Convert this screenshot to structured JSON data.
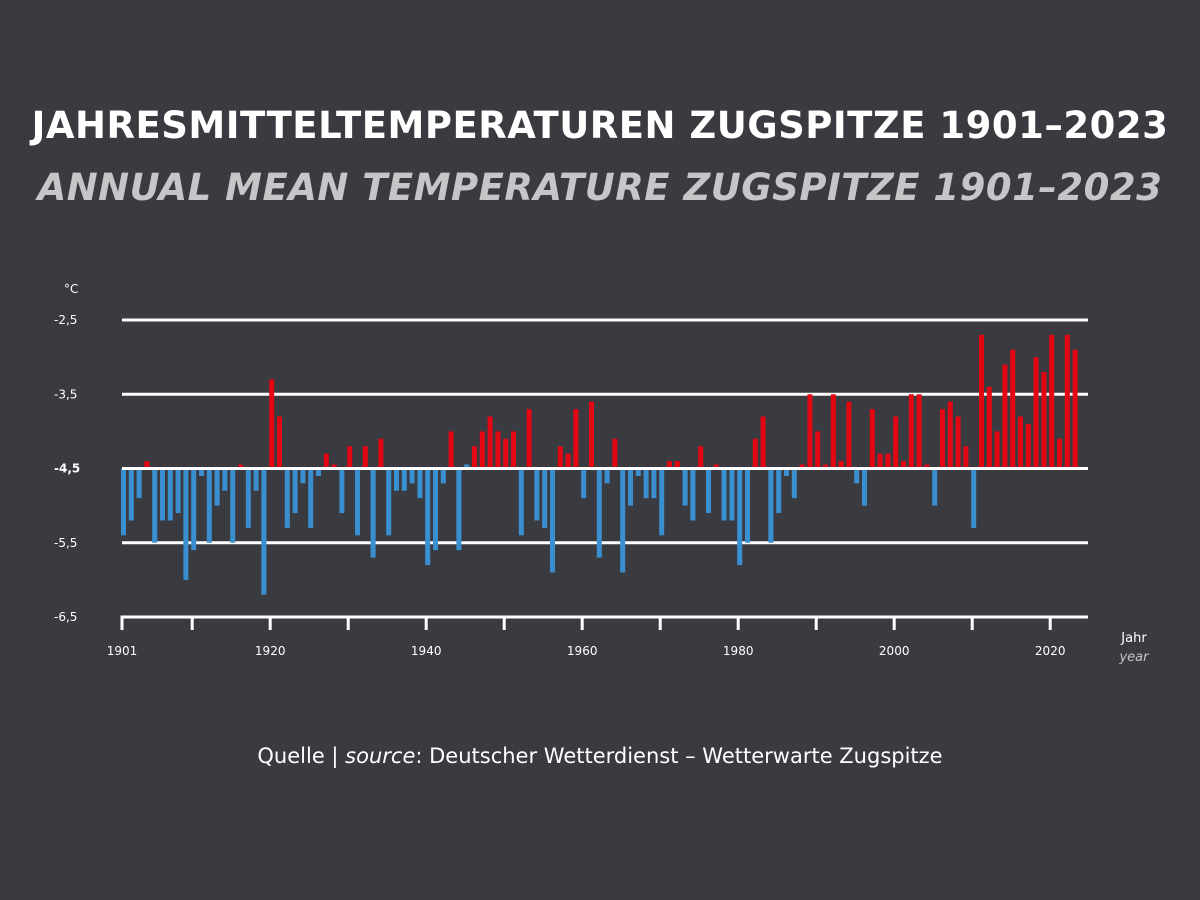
{
  "title": "JAHRESMITTELTEMPERATUREN ZUGSPITZE 1901–2023",
  "subtitle": "ANNUAL MEAN TEMPERATURE ZUGSPITZE 1901–2023",
  "source": {
    "label_de": "Quelle | ",
    "label_en": "source",
    "text": ": Deutscher Wetterdienst – Wetterwarte Zugspitze"
  },
  "colors": {
    "background": "#3a3b40",
    "above_mean": "#e30613",
    "below_mean": "#3a8fd0",
    "grid": "#ffffff"
  },
  "chart_data": {
    "type": "bar",
    "ylabel": "°C",
    "xlabel": "Jahr",
    "xlabel_en": "year",
    "ylim": [
      -6.5,
      -2.5
    ],
    "baseline": -4.5,
    "yticks": [
      "-2,5",
      "-3,5",
      "-4,5",
      "-5,5",
      "-6,5"
    ],
    "ytick_values": [
      -2.5,
      -3.5,
      -4.5,
      -5.5,
      -6.5
    ],
    "xticks": [
      "1901",
      "1920",
      "1940",
      "1960",
      "1980",
      "2000",
      "2020"
    ],
    "grid": true,
    "x_start": 1901,
    "x_end": 2023,
    "values": [
      -5.4,
      -5.2,
      -4.9,
      -4.4,
      -5.5,
      -5.2,
      -5.2,
      -5.1,
      -6.0,
      -5.6,
      -4.6,
      -5.5,
      -5.0,
      -4.8,
      -5.5,
      -4.48,
      -5.3,
      -4.8,
      -6.2,
      -3.3,
      -3.8,
      -5.3,
      -5.1,
      -4.7,
      -5.3,
      -4.6,
      -4.3,
      -4.48,
      -5.1,
      -4.2,
      -5.4,
      -4.2,
      -5.7,
      -4.1,
      -5.4,
      -4.8,
      -4.8,
      -4.7,
      -4.9,
      -5.8,
      -5.6,
      -4.7,
      -4.0,
      -5.6,
      -4.5,
      -4.2,
      -4.0,
      -3.8,
      -4.0,
      -4.1,
      -4.0,
      -5.4,
      -3.7,
      -5.2,
      -5.3,
      -5.9,
      -4.2,
      -4.3,
      -3.7,
      -4.9,
      -3.6,
      -5.7,
      -4.7,
      -4.1,
      -5.9,
      -5.0,
      -4.6,
      -4.9,
      -4.9,
      -5.4,
      -4.4,
      -4.4,
      -5.0,
      -5.2,
      -4.2,
      -5.1,
      -4.48,
      -5.2,
      -5.2,
      -5.8,
      -5.5,
      -4.1,
      -3.8,
      -5.5,
      -5.1,
      -4.6,
      -4.9,
      -4.48,
      -3.5,
      -4.0,
      -4.48,
      -3.5,
      -4.4,
      -3.6,
      -4.7,
      -5.0,
      -3.7,
      -4.3,
      -4.3,
      -3.8,
      -4.4,
      -3.5,
      -3.5,
      -4.48,
      -5.0,
      -3.7,
      -3.6,
      -3.8,
      -4.2,
      -5.3,
      -2.7,
      -3.4,
      -4.0,
      -3.1,
      -2.9,
      -3.8,
      -3.9,
      -3.0,
      -3.2,
      -2.7,
      -4.1,
      -2.7,
      -2.9
    ]
  }
}
